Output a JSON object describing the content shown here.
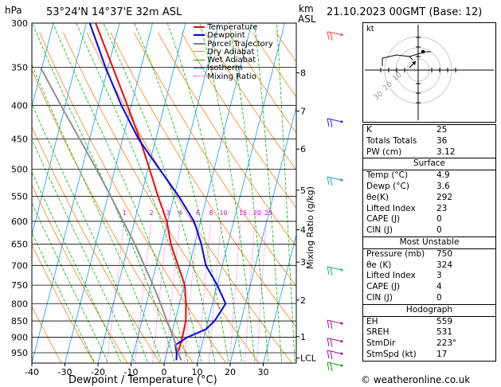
{
  "header": {
    "location": "53°24'N  14°37'E  32m  ASL",
    "datetime": "21.10.2023  00GMT  (Base: 12)",
    "hpa_label": "hPa",
    "km_label": "km",
    "asl_label": "ASL",
    "mixing_label": "Mixing Ratio (g/kg)"
  },
  "legend": {
    "items": [
      {
        "label": "Temperature",
        "color": "#ff0000"
      },
      {
        "label": "Dewpoint",
        "color": "#0000ff"
      },
      {
        "label": "Parcel Trajectory",
        "color": "#808080"
      },
      {
        "label": "Dry Adiabat",
        "color": "#ff8000"
      },
      {
        "label": "Wet Adiabat",
        "color": "#00bb00"
      },
      {
        "label": "Isotherm",
        "color": "#00a0ff"
      },
      {
        "label": "Mixing Ratio",
        "color": "#ff00ff"
      }
    ]
  },
  "chart_data": {
    "type": "line",
    "title": "",
    "xlabel": "Dewpoint / Temperature (°C)",
    "ylabel": "hPa",
    "x_ticks": [
      -40,
      -30,
      -20,
      -10,
      0,
      10,
      20,
      30
    ],
    "xlim": [
      -40,
      40
    ],
    "pressure_ticks": [
      300,
      350,
      400,
      450,
      500,
      550,
      600,
      650,
      700,
      750,
      800,
      850,
      900,
      950
    ],
    "km_ticks": [
      {
        "km": "8",
        "p": 357
      },
      {
        "km": "7",
        "p": 408
      },
      {
        "km": "6",
        "p": 466
      },
      {
        "km": "5",
        "p": 538
      },
      {
        "km": "4",
        "p": 618
      },
      {
        "km": "3",
        "p": 692
      },
      {
        "km": "2",
        "p": 790
      },
      {
        "km": "1",
        "p": 898
      },
      {
        "km": "LCL",
        "p": 968
      }
    ],
    "mixing_ratio_labels": [
      "1",
      "2",
      "3",
      "4",
      "6",
      "8",
      "10",
      "15",
      "20",
      "25"
    ],
    "series": [
      {
        "name": "Temperature",
        "p": [
          975,
          950,
          900,
          850,
          800,
          750,
          700,
          650,
          600,
          550,
          500,
          450,
          400,
          350,
          300
        ],
        "t": [
          5.0,
          3.4,
          3.5,
          3.3,
          2.0,
          0.2,
          -3.4,
          -7.2,
          -10.2,
          -14.8,
          -19.5,
          -24.8,
          -31.2,
          -38.6,
          -47.2
        ]
      },
      {
        "name": "Dewpoint",
        "p": [
          975,
          950,
          925,
          900,
          875,
          850,
          800,
          750,
          700,
          650,
          600,
          550,
          500,
          450,
          400,
          350,
          300
        ],
        "t": [
          3.5,
          3.0,
          2.0,
          5.0,
          10.0,
          12.0,
          14.0,
          10.0,
          5.0,
          2.0,
          -2.0,
          -8.5,
          -16.5,
          -25.2,
          -33.0,
          -40.8,
          -49.0
        ]
      },
      {
        "name": "Parcel Trajectory",
        "p": [
          975,
          950,
          900,
          850,
          800,
          750,
          700,
          650,
          600,
          550,
          500,
          450,
          400,
          350
        ],
        "t": [
          4.9,
          3.5,
          0.8,
          -2.4,
          -5.7,
          -9.4,
          -13.6,
          -18.1,
          -23.4,
          -29.1,
          -35.6,
          -43.0,
          -51.3,
          -60.5
        ]
      }
    ]
  },
  "indices": {
    "rows1": [
      {
        "label": "K",
        "value": "25"
      },
      {
        "label": "Totals Totals",
        "value": "36"
      },
      {
        "label": "PW (cm)",
        "value": "3.12"
      }
    ],
    "surface_title": "Surface",
    "surface": [
      {
        "label": "Temp (°C)",
        "value": "4.9"
      },
      {
        "label": "Dewp (°C)",
        "value": "3.6"
      },
      {
        "label": "θe(K)",
        "value": "292"
      },
      {
        "label": "Lifted Index",
        "value": "23"
      },
      {
        "label": "CAPE (J)",
        "value": "0"
      },
      {
        "label": "CIN (J)",
        "value": "0"
      }
    ],
    "unstable_title": "Most Unstable",
    "unstable": [
      {
        "label": "Pressure (mb)",
        "value": "750"
      },
      {
        "label": "θe (K)",
        "value": "324"
      },
      {
        "label": "Lifted Index",
        "value": "3"
      },
      {
        "label": "CAPE (J)",
        "value": "4"
      },
      {
        "label": "CIN (J)",
        "value": "0"
      }
    ],
    "hodo_title": "Hodograph",
    "hodo": [
      {
        "label": "EH",
        "value": "559"
      },
      {
        "label": "SREH",
        "value": "531"
      },
      {
        "label": "StmDir",
        "value": "223°"
      },
      {
        "label": "StmSpd (kt)",
        "value": "17"
      }
    ]
  },
  "hodograph": {
    "unit": "kt",
    "ring_labels": [
      "10",
      "20",
      "30"
    ]
  },
  "footer": {
    "credit": "© weatheronline.co.uk"
  }
}
